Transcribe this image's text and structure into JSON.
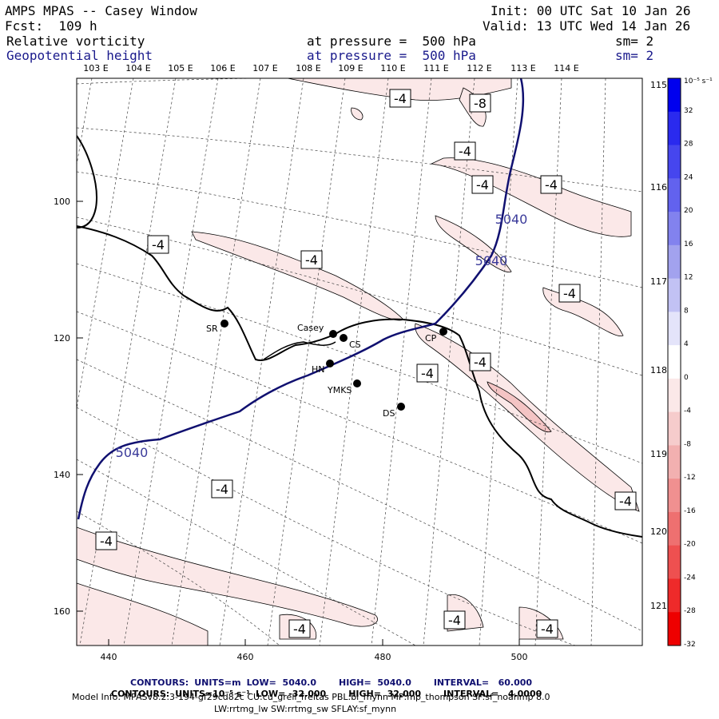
{
  "header": {
    "title": "AMPS MPAS -- Casey Window",
    "init": "Init: 00 UTC Sat 10 Jan 26",
    "fcst": "Fcst:  109 h",
    "valid": "Valid: 13 UTC Wed 14 Jan 26",
    "field1": {
      "name": "Relative vorticity",
      "level": "at pressure =  500 hPa",
      "smooth": "sm= 2"
    },
    "field2": {
      "name": "Geopotential height",
      "level": "at pressure =  500 hPa",
      "smooth": "sm= 2"
    }
  },
  "map": {
    "lon_top": [
      "103 E",
      "104 E",
      "105 E",
      "106 E",
      "107 E",
      "108 E",
      "109 E",
      "110 E",
      "111 E",
      "112 E",
      "113 E",
      "114 E"
    ],
    "lon_right": [
      "115 E",
      "116 E",
      "117 E",
      "118 E",
      "119 E",
      "120 E",
      "121 E"
    ],
    "x_ticks": [
      "440",
      "460",
      "480",
      "500"
    ],
    "y_ticks": [
      "100",
      "120",
      "140",
      "160"
    ],
    "height_contour_label": "5040",
    "vort_labels": [
      "-4",
      "-8"
    ],
    "stations": [
      {
        "code": "SR"
      },
      {
        "code": "Casey"
      },
      {
        "code": "CS"
      },
      {
        "code": "HN"
      },
      {
        "code": "YMKS"
      },
      {
        "code": "DS"
      },
      {
        "code": "CP"
      }
    ]
  },
  "colorbar": {
    "unit": "10⁻⁵ s⁻¹",
    "ticks": [
      "32",
      "28",
      "24",
      "20",
      "16",
      "12",
      "8",
      "4",
      "0",
      "-4",
      "-8",
      "-12",
      "-16",
      "-20",
      "-24",
      "-28",
      "-32"
    ],
    "colors": [
      "#0000ee",
      "#2a2aee",
      "#4646ee",
      "#6262ee",
      "#8282ee",
      "#a2a2ee",
      "#c2c2f4",
      "#e4e4fa",
      "#ffffff",
      "#fbe8e8",
      "#f6cccc",
      "#f2b0b0",
      "#f09090",
      "#ee7070",
      "#ee5050",
      "#ee2a2a",
      "#ee0000"
    ]
  },
  "footer": {
    "line1": {
      "contours": "CONTOURS:",
      "units": "UNITS=m",
      "low": "LOW=  5040.0",
      "high": "HIGH=  5040.0",
      "interval": "INTERVAL=   60.000"
    },
    "line2": {
      "contours": "CONTOURS:",
      "units": "UNITS=10⁻⁵ s⁻¹",
      "low": "LOW= -32.000",
      "high": "HIGH=  32.000",
      "interval": "INTERVAL=   4.0000"
    },
    "model_info": "Model Info: MPASv8.2.3-194-gf29cd82c CU:cu_grell_freitas PBL:bl_mynn MP:mp_thompson SF:sf_noahmp 8.0",
    "model_info2": "LW:rrtmg_lw SW:rrtmg_sw SFLAY:sf_mynn"
  }
}
